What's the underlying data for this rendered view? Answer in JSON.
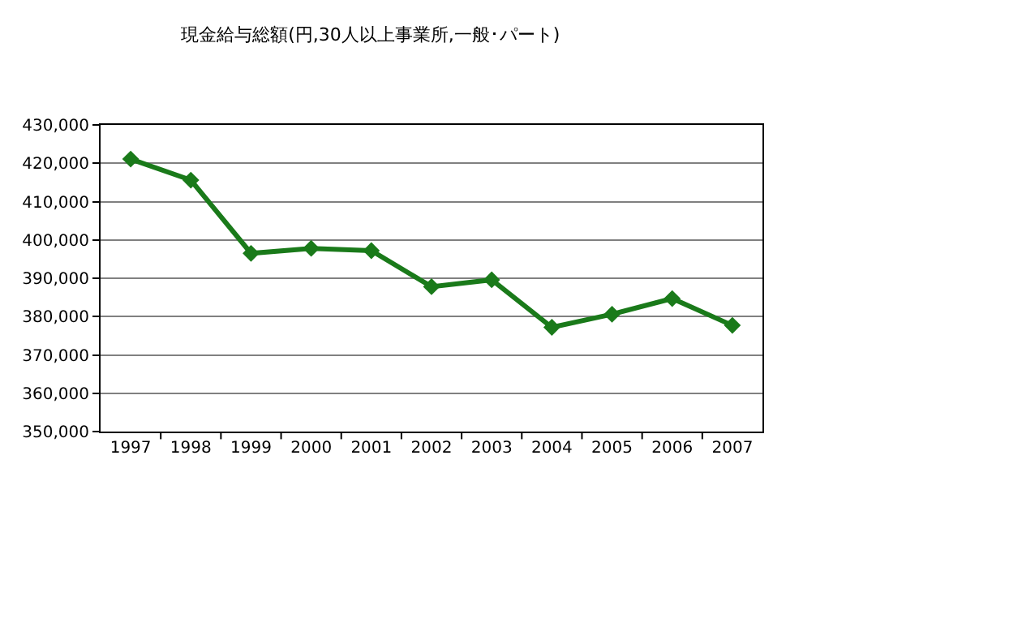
{
  "chart_data": {
    "type": "line",
    "title": "現金給与総額(円,30人以上事業所,一般･パート)",
    "categories": [
      "1997",
      "1998",
      "1999",
      "2000",
      "2001",
      "2002",
      "2003",
      "2004",
      "2005",
      "2006",
      "2007"
    ],
    "series": [
      {
        "color": "#1a7a1a",
        "values": [
          421100,
          415600,
          396500,
          397800,
          397200,
          387800,
          389600,
          377200,
          380600,
          384700,
          377700
        ]
      }
    ],
    "ylim": [
      350000,
      430000
    ],
    "yticks": [
      {
        "value": 350000,
        "label": "350,000"
      },
      {
        "value": 360000,
        "label": "360,000"
      },
      {
        "value": 370000,
        "label": "370,000"
      },
      {
        "value": 380000,
        "label": "380,000"
      },
      {
        "value": 390000,
        "label": "390,000"
      },
      {
        "value": 400000,
        "label": "400,000"
      },
      {
        "value": 410000,
        "label": "410,000"
      },
      {
        "value": 420000,
        "label": "420,000"
      },
      {
        "value": 430000,
        "label": "430,000"
      }
    ],
    "grid": "y",
    "marker": "diamond",
    "line_style": "solid"
  }
}
